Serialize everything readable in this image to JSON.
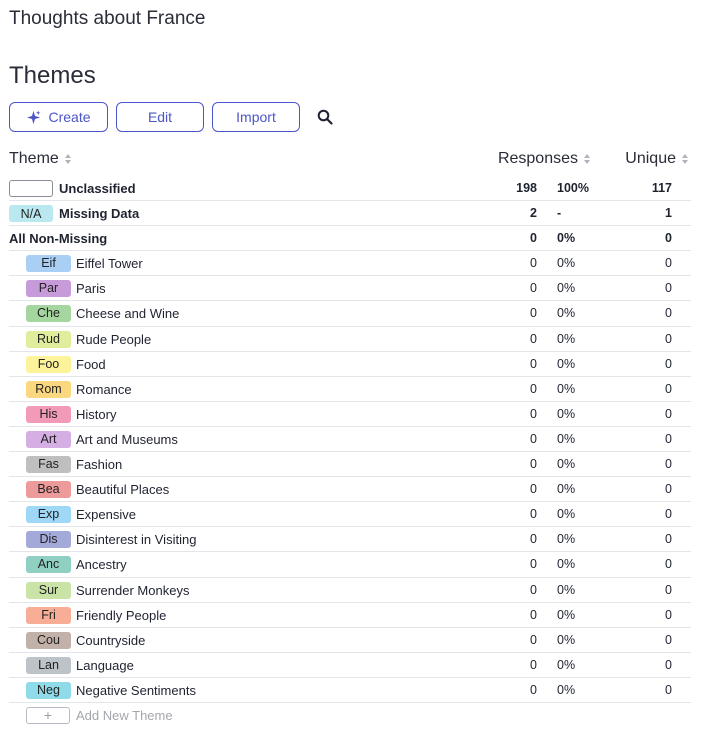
{
  "page": {
    "title": "Thoughts about France",
    "section_title": "Themes"
  },
  "toolbar": {
    "create_label": "Create",
    "edit_label": "Edit",
    "import_label": "Import",
    "accent_color": "#4b55c8",
    "create_icon": "sparkle-icon",
    "search_icon": "search-icon"
  },
  "table": {
    "headers": {
      "theme": "Theme",
      "responses": "Responses",
      "unique": "Unique"
    },
    "summary_rows": [
      {
        "badge": "",
        "badge_color": "#ffffff",
        "badge_border": "#8a8c96",
        "label": "Unclassified",
        "responses": "198",
        "percent": "100%",
        "unique": "117"
      },
      {
        "badge": "N/A",
        "badge_color": "#b9e8f0",
        "badge_border": "#b9e8f0",
        "label": "Missing Data",
        "responses": "2",
        "percent": "-",
        "unique": "1"
      },
      {
        "badge": "",
        "badge_color": "",
        "badge_border": "",
        "label": "All Non-Missing",
        "responses": "0",
        "percent": "0%",
        "unique": "0"
      }
    ],
    "themes": [
      {
        "badge": "Eif",
        "color": "#a9cff5",
        "label": "Eiffel Tower",
        "responses": "0",
        "percent": "0%",
        "unique": "0"
      },
      {
        "badge": "Par",
        "color": "#c79ad9",
        "label": "Paris",
        "responses": "0",
        "percent": "0%",
        "unique": "0"
      },
      {
        "badge": "Che",
        "color": "#a6d6a0",
        "label": "Cheese and Wine",
        "responses": "0",
        "percent": "0%",
        "unique": "0"
      },
      {
        "badge": "Rud",
        "color": "#e0ed9c",
        "label": "Rude People",
        "responses": "0",
        "percent": "0%",
        "unique": "0"
      },
      {
        "badge": "Foo",
        "color": "#fdf39a",
        "label": "Food",
        "responses": "0",
        "percent": "0%",
        "unique": "0"
      },
      {
        "badge": "Rom",
        "color": "#fbd77f",
        "label": "Romance",
        "responses": "0",
        "percent": "0%",
        "unique": "0"
      },
      {
        "badge": "His",
        "color": "#f29bb8",
        "label": "History",
        "responses": "0",
        "percent": "0%",
        "unique": "0"
      },
      {
        "badge": "Art",
        "color": "#d5aee3",
        "label": "Art and Museums",
        "responses": "0",
        "percent": "0%",
        "unique": "0"
      },
      {
        "badge": "Fas",
        "color": "#bfbfbf",
        "label": "Fashion",
        "responses": "0",
        "percent": "0%",
        "unique": "0"
      },
      {
        "badge": "Bea",
        "color": "#ed9a9a",
        "label": "Beautiful Places",
        "responses": "0",
        "percent": "0%",
        "unique": "0"
      },
      {
        "badge": "Exp",
        "color": "#9fd7f7",
        "label": "Expensive",
        "responses": "0",
        "percent": "0%",
        "unique": "0"
      },
      {
        "badge": "Dis",
        "color": "#a3a9d9",
        "label": "Disinterest in Visiting",
        "responses": "0",
        "percent": "0%",
        "unique": "0"
      },
      {
        "badge": "Anc",
        "color": "#8fd0c2",
        "label": "Ancestry",
        "responses": "0",
        "percent": "0%",
        "unique": "0"
      },
      {
        "badge": "Sur",
        "color": "#c9e4a6",
        "label": "Surrender Monkeys",
        "responses": "0",
        "percent": "0%",
        "unique": "0"
      },
      {
        "badge": "Fri",
        "color": "#f7ad96",
        "label": "Friendly People",
        "responses": "0",
        "percent": "0%",
        "unique": "0"
      },
      {
        "badge": "Cou",
        "color": "#c2b1a8",
        "label": "Countryside",
        "responses": "0",
        "percent": "0%",
        "unique": "0"
      },
      {
        "badge": "Lan",
        "color": "#bcc3c9",
        "label": "Language",
        "responses": "0",
        "percent": "0%",
        "unique": "0"
      },
      {
        "badge": "Neg",
        "color": "#90dbe9",
        "label": "Negative Sentiments",
        "responses": "0",
        "percent": "0%",
        "unique": "0"
      }
    ],
    "add_new": {
      "symbol": "+",
      "label": "Add New Theme"
    }
  }
}
